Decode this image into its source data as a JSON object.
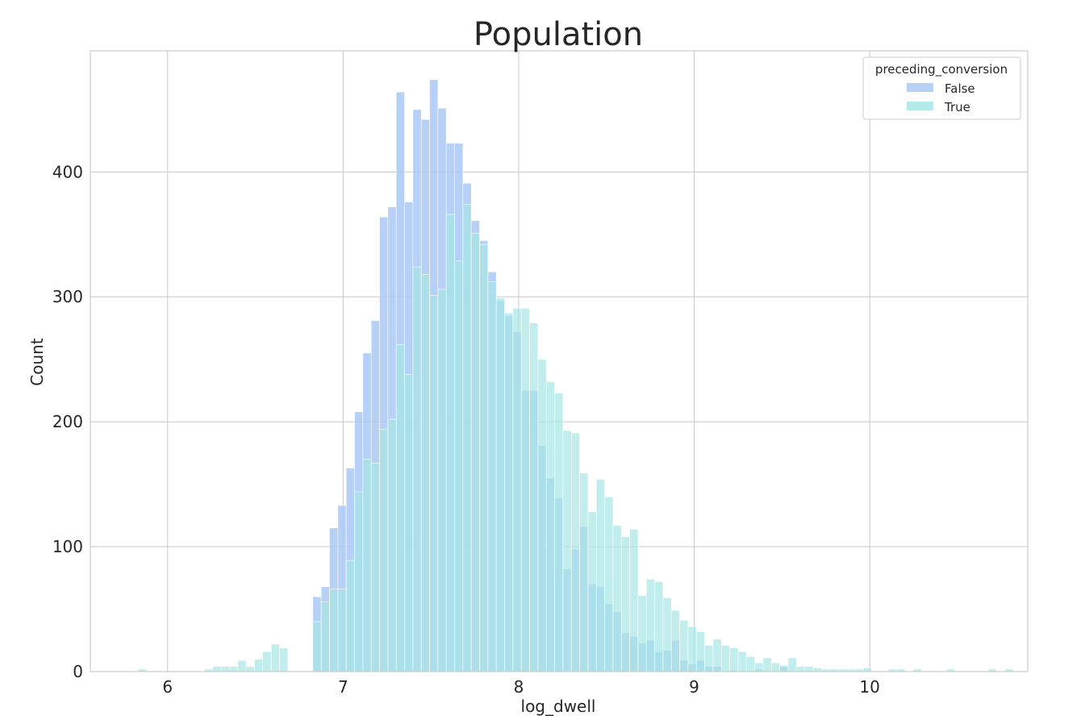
{
  "chart_data": {
    "type": "histogram",
    "title": "Population",
    "xlabel": "log_dwell",
    "ylabel": "Count",
    "xlim": [
      5.56,
      10.9
    ],
    "ylim": [
      0,
      497
    ],
    "xticks": [
      6,
      7,
      8,
      9,
      10
    ],
    "yticks": [
      0,
      100,
      200,
      300,
      400
    ],
    "grid": true,
    "legend": {
      "title": "preceding_conversion",
      "placement": "top-right"
    },
    "bin_start": 5.83,
    "bin_width": 0.0475,
    "series": [
      {
        "name": "False",
        "color": "#a9c8f4",
        "values": [
          0,
          0,
          0,
          0,
          0,
          0,
          0,
          0,
          0,
          0,
          0,
          0,
          0,
          0,
          0,
          0,
          0,
          0,
          0,
          0,
          0,
          60,
          68,
          115,
          133,
          163,
          208,
          255,
          281,
          364,
          372,
          464,
          376,
          450,
          442,
          474,
          451,
          423,
          423,
          391,
          361,
          345,
          320,
          297,
          285,
          272,
          225,
          225,
          181,
          155,
          139,
          82,
          98,
          116,
          70,
          68,
          54,
          48,
          31,
          28,
          23,
          25,
          16,
          17,
          25,
          9,
          6,
          9,
          4,
          4,
          0,
          1,
          0,
          0,
          2,
          0,
          0,
          4,
          0,
          0,
          0,
          0,
          0,
          0,
          0,
          0,
          0,
          0,
          0,
          0,
          0,
          0,
          0,
          0,
          0,
          0,
          0,
          0,
          0,
          0,
          0,
          0,
          0,
          0,
          0
        ]
      },
      {
        "name": "True",
        "color": "#a7e6e6",
        "values": [
          2,
          0,
          0,
          0,
          0,
          0,
          0,
          0,
          2,
          4,
          4,
          4,
          9,
          4,
          10,
          16,
          22,
          19,
          0,
          0,
          0,
          40,
          56,
          66,
          66,
          89,
          144,
          170,
          167,
          194,
          202,
          262,
          238,
          324,
          318,
          301,
          306,
          366,
          329,
          374,
          351,
          342,
          312,
          299,
          287,
          291,
          291,
          279,
          250,
          232,
          223,
          193,
          191,
          159,
          128,
          154,
          140,
          117,
          108,
          114,
          61,
          74,
          72,
          59,
          49,
          41,
          36,
          32,
          21,
          26,
          21,
          19,
          16,
          12,
          7,
          11,
          7,
          5,
          11,
          4,
          4,
          3,
          2,
          2,
          2,
          2,
          2,
          3,
          0,
          0,
          2,
          2,
          0,
          2,
          0,
          0,
          0,
          2,
          0,
          0,
          0,
          0,
          2,
          0,
          2
        ]
      }
    ]
  }
}
